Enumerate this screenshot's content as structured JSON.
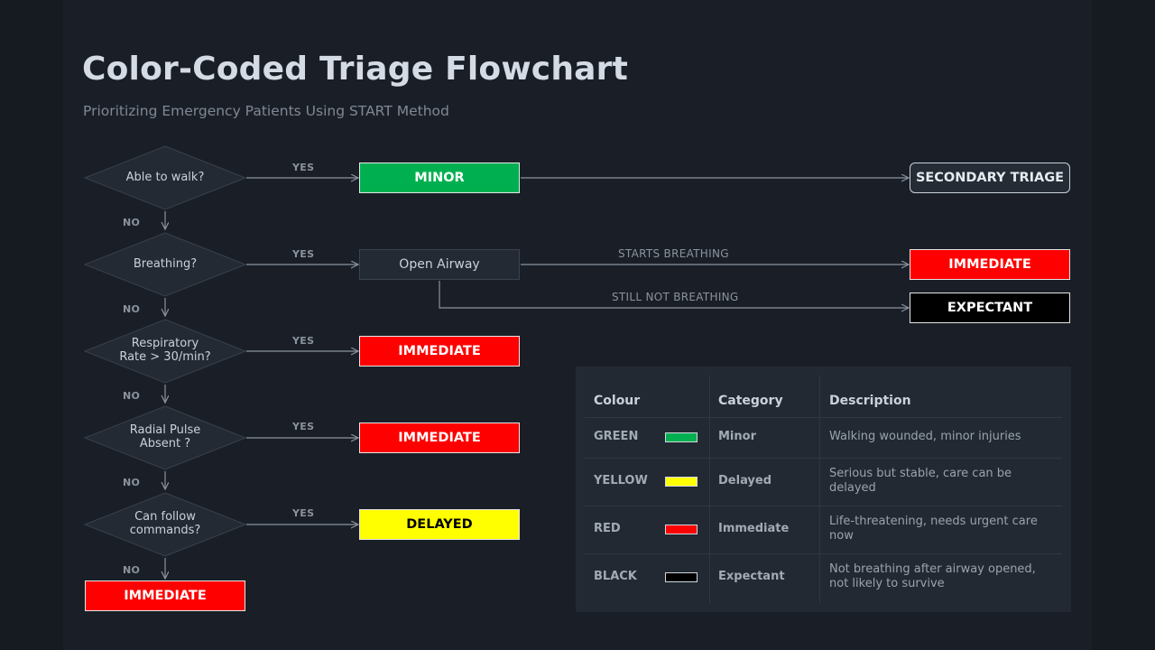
{
  "title": "Color-Coded Triage Flowchart",
  "subtitle": "Prioritizing Emergency Patients Using START Method",
  "colors": {
    "background": "#1a1f27",
    "green": "#00b050",
    "red": "#ff0000",
    "yellow": "#ffff00",
    "black": "#000000",
    "line": "#8a939e"
  },
  "flow": {
    "questions": [
      "Able to walk?",
      "Breathing?",
      "Respiratory\nRate > 30/min?",
      "Radial Pulse\nAbsent ?",
      "Can follow\ncommands?"
    ],
    "yes_label": "YES",
    "no_label": "NO",
    "outcomes": [
      "MINOR",
      "Open Airway",
      "IMMEDIATE",
      "IMMEDIATE",
      "DELAYED"
    ],
    "final_no": "IMMEDIATE",
    "secondary_triage": "SECONDARY TRIAGE",
    "airway": {
      "starts_breathing_label": "STARTS BREATHING",
      "starts_breathing_result": "IMMEDIATE",
      "still_not_label": "STILL NOT BREATHING",
      "still_not_result": "EXPECTANT"
    }
  },
  "table": {
    "headers": [
      "Colour",
      "Category",
      "Description"
    ],
    "rows": [
      {
        "colour": "GREEN",
        "swatch": "#00b050",
        "category": "Minor",
        "description": "Walking wounded, minor injuries"
      },
      {
        "colour": "YELLOW",
        "swatch": "#ffff00",
        "category": "Delayed",
        "description": "Serious but stable, care can be delayed"
      },
      {
        "colour": "RED",
        "swatch": "#ff0000",
        "category": "Immediate",
        "description": "Life-threatening, needs urgent care now"
      },
      {
        "colour": "BLACK",
        "swatch": "#000000",
        "category": "Expectant",
        "description": "Not breathing after airway opened, not likely to survive"
      }
    ]
  }
}
